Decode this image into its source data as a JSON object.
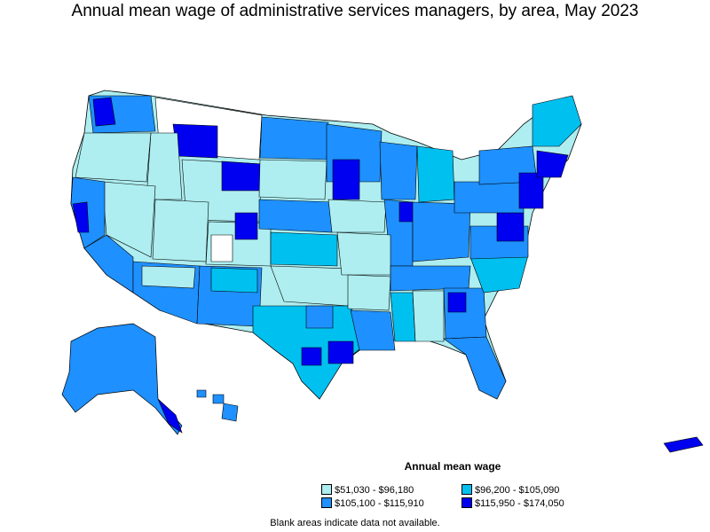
{
  "title": "Annual mean wage of administrative services managers, by area, May 2023",
  "legend": {
    "title": "Annual mean wage",
    "items": [
      {
        "label": "$51,030 - $96,180",
        "color": "#aeeef0"
      },
      {
        "label": "$96,200 - $105,090",
        "color": "#00c0f0"
      },
      {
        "label": "$105,100 - $115,910",
        "color": "#1e90ff"
      },
      {
        "label": "$115,950 - $174,050",
        "color": "#0000f0"
      }
    ]
  },
  "note": "Blank areas indicate data not available.",
  "colors": {
    "background": "#ffffff",
    "border": "#000000",
    "tier1": "#aeeef0",
    "tier2": "#00c0f0",
    "tier3": "#1e90ff",
    "tier4": "#0000f0",
    "no_data": "#ffffff"
  }
}
